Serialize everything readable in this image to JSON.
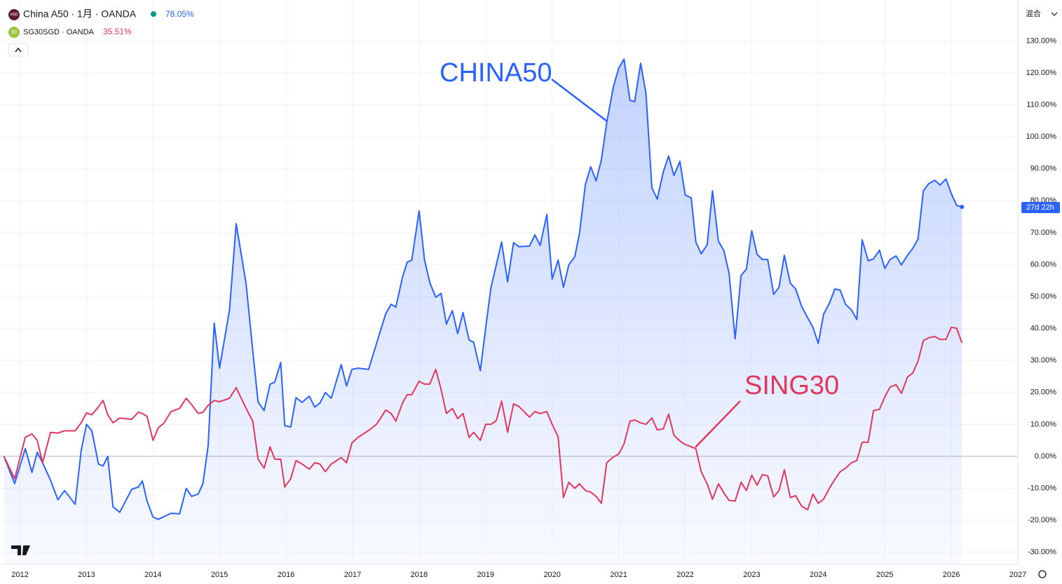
{
  "chart_data": {
    "type": "line",
    "legend_values": [
      "78.05%",
      "35.51%"
    ],
    "icons": [
      "A50",
      "30"
    ],
    "mode_button": "混合",
    "countdown": "27d 22h",
    "annotations": [
      {
        "text": "CHINA50",
        "color": "#2962ff"
      },
      {
        "text": "SING30",
        "color": "#e0385c"
      }
    ],
    "x": [
      2011.76,
      2011.92,
      2012.08,
      2012.18,
      2012.26,
      2012.34,
      2012.46,
      2012.57,
      2012.67,
      2012.83,
      2012.92,
      2013.0,
      2013.08,
      2013.18,
      2013.25,
      2013.32,
      2013.4,
      2013.5,
      2013.68,
      2013.78,
      2013.84,
      2013.91,
      2014.0,
      2014.08,
      2014.16,
      2014.27,
      2014.4,
      2014.5,
      2014.58,
      2014.68,
      2014.75,
      2014.83,
      2014.92,
      2015.0,
      2015.15,
      2015.25,
      2015.4,
      2015.5,
      2015.58,
      2015.67,
      2015.76,
      2015.83,
      2015.92,
      2015.98,
      2016.07,
      2016.15,
      2016.24,
      2016.35,
      2016.43,
      2016.51,
      2016.59,
      2016.68,
      2016.83,
      2016.91,
      2016.99,
      2017.08,
      2017.24,
      2017.36,
      2017.5,
      2017.58,
      2017.65,
      2017.75,
      2017.82,
      2017.89,
      2018.0,
      2018.08,
      2018.16,
      2018.25,
      2018.33,
      2018.41,
      2018.5,
      2018.58,
      2018.66,
      2018.75,
      2018.82,
      2018.92,
      2019.0,
      2019.08,
      2019.16,
      2019.24,
      2019.33,
      2019.42,
      2019.5,
      2019.66,
      2019.74,
      2019.82,
      2019.92,
      2020.0,
      2020.09,
      2020.17,
      2020.25,
      2020.34,
      2020.41,
      2020.5,
      2020.58,
      2020.66,
      2020.74,
      2020.82,
      2020.92,
      2021.0,
      2021.08,
      2021.17,
      2021.24,
      2021.33,
      2021.41,
      2021.5,
      2021.58,
      2021.67,
      2021.75,
      2021.83,
      2021.92,
      2022.0,
      2022.09,
      2022.16,
      2022.24,
      2022.33,
      2022.41,
      2022.5,
      2022.58,
      2022.66,
      2022.75,
      2022.84,
      2022.92,
      2023.0,
      2023.08,
      2023.16,
      2023.24,
      2023.33,
      2023.41,
      2023.49,
      2023.58,
      2023.66,
      2023.75,
      2023.84,
      2023.92,
      2024.0,
      2024.08,
      2024.17,
      2024.25,
      2024.33,
      2024.41,
      2024.5,
      2024.58,
      2024.66,
      2024.75,
      2024.83,
      2024.92,
      2025.0,
      2025.08,
      2025.17,
      2025.25,
      2025.34,
      2025.42,
      2025.5,
      2025.58,
      2025.66,
      2025.75,
      2025.83,
      2025.92,
      2026.0,
      2026.08,
      2026.16
    ],
    "series": [
      {
        "name": "China A50 · 1月 · OANDA",
        "color": "#2962ff",
        "values": [
          0,
          -8.5,
          2.4,
          -5,
          1.3,
          -2,
          -7.5,
          -13.6,
          -10.7,
          -15,
          1.8,
          10,
          8,
          -2.4,
          -3,
          0,
          -15.8,
          -17.5,
          -10.3,
          -9.6,
          -7.7,
          -14,
          -19,
          -19.7,
          -18.9,
          -17.8,
          -18,
          -10,
          -12.5,
          -11.8,
          -8.5,
          3.5,
          41.7,
          27.6,
          45.8,
          72.8,
          54,
          33,
          17,
          14.3,
          22.6,
          23.2,
          29.4,
          9.6,
          9.2,
          18.4,
          16.9,
          18.8,
          15.4,
          16.7,
          20,
          18.2,
          28.7,
          22,
          27.2,
          27.6,
          27.2,
          35.3,
          44.7,
          47.6,
          46.7,
          56.1,
          60.7,
          61.4,
          76.8,
          61.6,
          54.4,
          49.8,
          51,
          41.4,
          45.6,
          38.4,
          45,
          36.4,
          35.7,
          26.8,
          40.1,
          52.9,
          59.9,
          67.1,
          54.6,
          66.9,
          65.6,
          65.8,
          69.3,
          66,
          75.7,
          55.5,
          61.4,
          52.9,
          59.9,
          62.5,
          69.7,
          85.1,
          90.6,
          86.2,
          92.8,
          104.4,
          115.6,
          121.5,
          124.3,
          111.4,
          111,
          123,
          113.6,
          84,
          80.5,
          89,
          94,
          87.9,
          92.3,
          81.8,
          80.9,
          67.1,
          63.4,
          66.2,
          83.1,
          67.3,
          64.5,
          57.2,
          36.8,
          56.6,
          58.6,
          70.6,
          63.2,
          61.6,
          61.6,
          50.7,
          52.9,
          62.9,
          54.2,
          52.4,
          46.9,
          43.4,
          40.4,
          35.3,
          44.5,
          48,
          52.4,
          52,
          47.6,
          45.8,
          42.8,
          67.8,
          61.2,
          61.8,
          64.5,
          58.8,
          61.6,
          62.7,
          59.9,
          62.9,
          65.1,
          68,
          83.1,
          85.3,
          86.4,
          84.9,
          86.8,
          82.2,
          78.5,
          78.05
        ]
      },
      {
        "name": "SG30SGD · OANDA",
        "color": "#e0385c",
        "values": [
          0,
          -7,
          6,
          7,
          5,
          -2,
          7.5,
          7.3,
          8,
          8,
          10.5,
          13.6,
          13,
          15.5,
          17.5,
          13,
          10.5,
          12,
          11.6,
          13.8,
          13.4,
          12.5,
          5,
          9,
          10.3,
          14,
          15,
          18.2,
          16.2,
          13.4,
          13.8,
          16,
          17.5,
          17.1,
          18.2,
          21.5,
          15,
          11,
          -0.9,
          -3.7,
          3,
          -0.9,
          -0.9,
          -9.6,
          -7,
          -1.3,
          -2.4,
          -4,
          -2,
          -2.4,
          -4.8,
          -2.4,
          -0.4,
          -2,
          4.2,
          5.9,
          8.1,
          10,
          14.5,
          13.4,
          11,
          16.7,
          19.3,
          19.3,
          23.5,
          22.6,
          22.6,
          27.2,
          21,
          13.4,
          15,
          11.8,
          13.4,
          5.9,
          7.5,
          5,
          10,
          10,
          11.2,
          17.3,
          7.5,
          16.4,
          15.6,
          12.3,
          14,
          13.4,
          14,
          10,
          6.1,
          -12.9,
          -8.1,
          -10,
          -8.6,
          -10.7,
          -11.2,
          -12.5,
          -14.7,
          -2,
          -0.2,
          0.7,
          3.9,
          11,
          11.4,
          10.5,
          10,
          12,
          8.3,
          8.6,
          13.2,
          6.6,
          4.8,
          3.7,
          3,
          2.4,
          -4.8,
          -8.6,
          -13.4,
          -8.6,
          -11.4,
          -13.8,
          -14,
          -8.1,
          -10.7,
          -5.9,
          -9,
          -5.7,
          -6.1,
          -12.7,
          -10.7,
          -4.2,
          -12.9,
          -12.3,
          -15.6,
          -16.7,
          -11.8,
          -14.7,
          -13.4,
          -9.9,
          -7.2,
          -4.8,
          -3.7,
          -2,
          -1.3,
          4.4,
          4.4,
          14.3,
          14.7,
          18.6,
          21.7,
          22.4,
          19.7,
          24.8,
          26.1,
          29.8,
          36.2,
          37.1,
          37.5,
          36.6,
          36.6,
          40.4,
          40.1,
          35.51
        ]
      }
    ],
    "xlim": [
      2011.7,
      2027.0
    ],
    "xticks": [
      2012,
      2013,
      2014,
      2015,
      2016,
      2017,
      2018,
      2019,
      2020,
      2021,
      2022,
      2023,
      2024,
      2025,
      2026,
      2027
    ],
    "ylim": [
      -33.8,
      142.8
    ],
    "yticks": [
      {
        "value": -30,
        "label": "-30.00%"
      },
      {
        "value": -20,
        "label": "-20.00%"
      },
      {
        "value": -10,
        "label": "-10.00%"
      },
      {
        "value": 0,
        "label": "0.00%"
      },
      {
        "value": 10,
        "label": "10.00%"
      },
      {
        "value": 20,
        "label": "20.00%"
      },
      {
        "value": 30,
        "label": "30.00%"
      },
      {
        "value": 40,
        "label": "40.00%"
      },
      {
        "value": 50,
        "label": "50.00%"
      },
      {
        "value": 60,
        "label": "60.00%"
      },
      {
        "value": 70,
        "label": "70.00%"
      },
      {
        "value": 80,
        "label": "80.00%"
      },
      {
        "value": 90,
        "label": "90.00%"
      },
      {
        "value": 100,
        "label": "100.00%"
      },
      {
        "value": 110,
        "label": "110.00%"
      },
      {
        "value": 120,
        "label": "120.00%"
      },
      {
        "value": 130,
        "label": "130.00%"
      }
    ],
    "grid": true
  }
}
